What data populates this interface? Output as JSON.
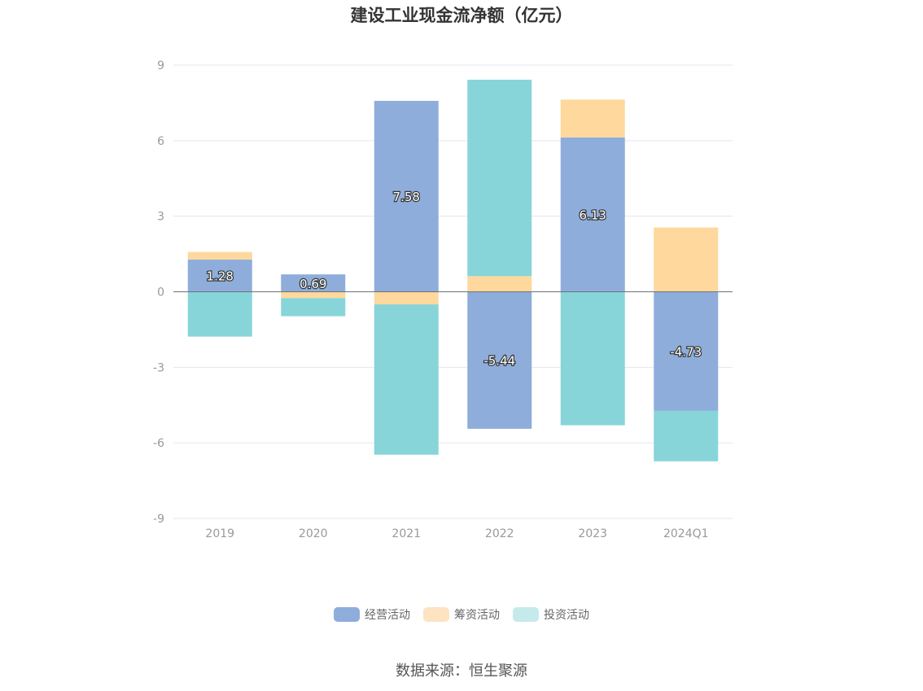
{
  "title": "建设工业现金流净额（亿元）",
  "source": "数据来源：恒生聚源",
  "chart_data": {
    "type": "bar",
    "stacked": true,
    "categories": [
      "2019",
      "2020",
      "2021",
      "2022",
      "2023",
      "2024Q1"
    ],
    "ylim": [
      -9,
      9
    ],
    "yticks": [
      9,
      6,
      3,
      0,
      -3,
      -6,
      -9
    ],
    "grid": true,
    "legend_position": "bottom",
    "series": [
      {
        "name": "经营活动",
        "color": "#8eaddb",
        "values": [
          1.28,
          0.69,
          7.58,
          -5.44,
          6.13,
          -4.73
        ],
        "labeled": true
      },
      {
        "name": "筹资活动",
        "color": "#fed89c",
        "values": [
          0.3,
          -0.25,
          -0.5,
          0.62,
          1.5,
          2.55
        ],
        "labeled": false
      },
      {
        "name": "投资活动",
        "color": "#87d5d9",
        "values": [
          -1.78,
          -0.72,
          -5.97,
          7.8,
          -5.3,
          -2.0
        ],
        "labeled": false
      }
    ]
  },
  "legend": [
    {
      "label": "经营活动",
      "color": "#8eaddb"
    },
    {
      "label": "筹资活动",
      "color": "#fde3c2"
    },
    {
      "label": "投资活动",
      "color": "#c5eaec"
    }
  ]
}
